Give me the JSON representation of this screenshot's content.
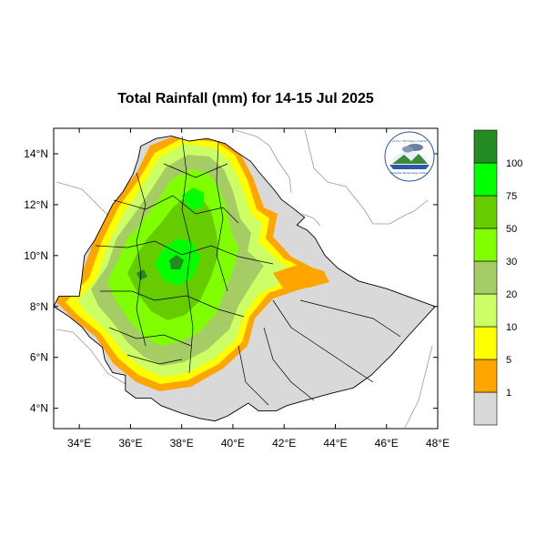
{
  "title": "Total Rainfall (mm) for 14-15 Jul 2025",
  "map": {
    "lon_range": [
      33,
      48
    ],
    "lat_range": [
      3.2,
      15
    ],
    "x_ticks": [
      {
        "lon": 34,
        "label": "34°E"
      },
      {
        "lon": 36,
        "label": "36°E"
      },
      {
        "lon": 38,
        "label": "38°E"
      },
      {
        "lon": 40,
        "label": "40°E"
      },
      {
        "lon": 42,
        "label": "42°E"
      },
      {
        "lon": 44,
        "label": "44°E"
      },
      {
        "lon": 46,
        "label": "46°E"
      },
      {
        "lon": 48,
        "label": "48°E"
      }
    ],
    "y_ticks": [
      {
        "lat": 4,
        "label": "4°N"
      },
      {
        "lat": 6,
        "label": "6°N"
      },
      {
        "lat": 8,
        "label": "8°N"
      },
      {
        "lat": 10,
        "label": "10°N"
      },
      {
        "lat": 12,
        "label": "12°N"
      },
      {
        "lat": 14,
        "label": "14°N"
      }
    ]
  },
  "legend": {
    "bins": [
      {
        "color": "#d9d9d9",
        "label": "1"
      },
      {
        "color": "#ffa500",
        "label": "5"
      },
      {
        "color": "#ffff00",
        "label": "10"
      },
      {
        "color": "#ccff66",
        "label": "20"
      },
      {
        "color": "#a6cc66",
        "label": "30"
      },
      {
        "color": "#80ff00",
        "label": "50"
      },
      {
        "color": "#66cc00",
        "label": "75"
      },
      {
        "color": "#00ff00",
        "label": "100"
      },
      {
        "color": "#228b22",
        "label": ""
      }
    ]
  },
  "logo": {
    "text_top": "ኢትዮጵያ ሜትዮሮሎጂ ኢንስቲትዩት",
    "text_bottom": "Ethiopian Meteorology Institute"
  }
}
